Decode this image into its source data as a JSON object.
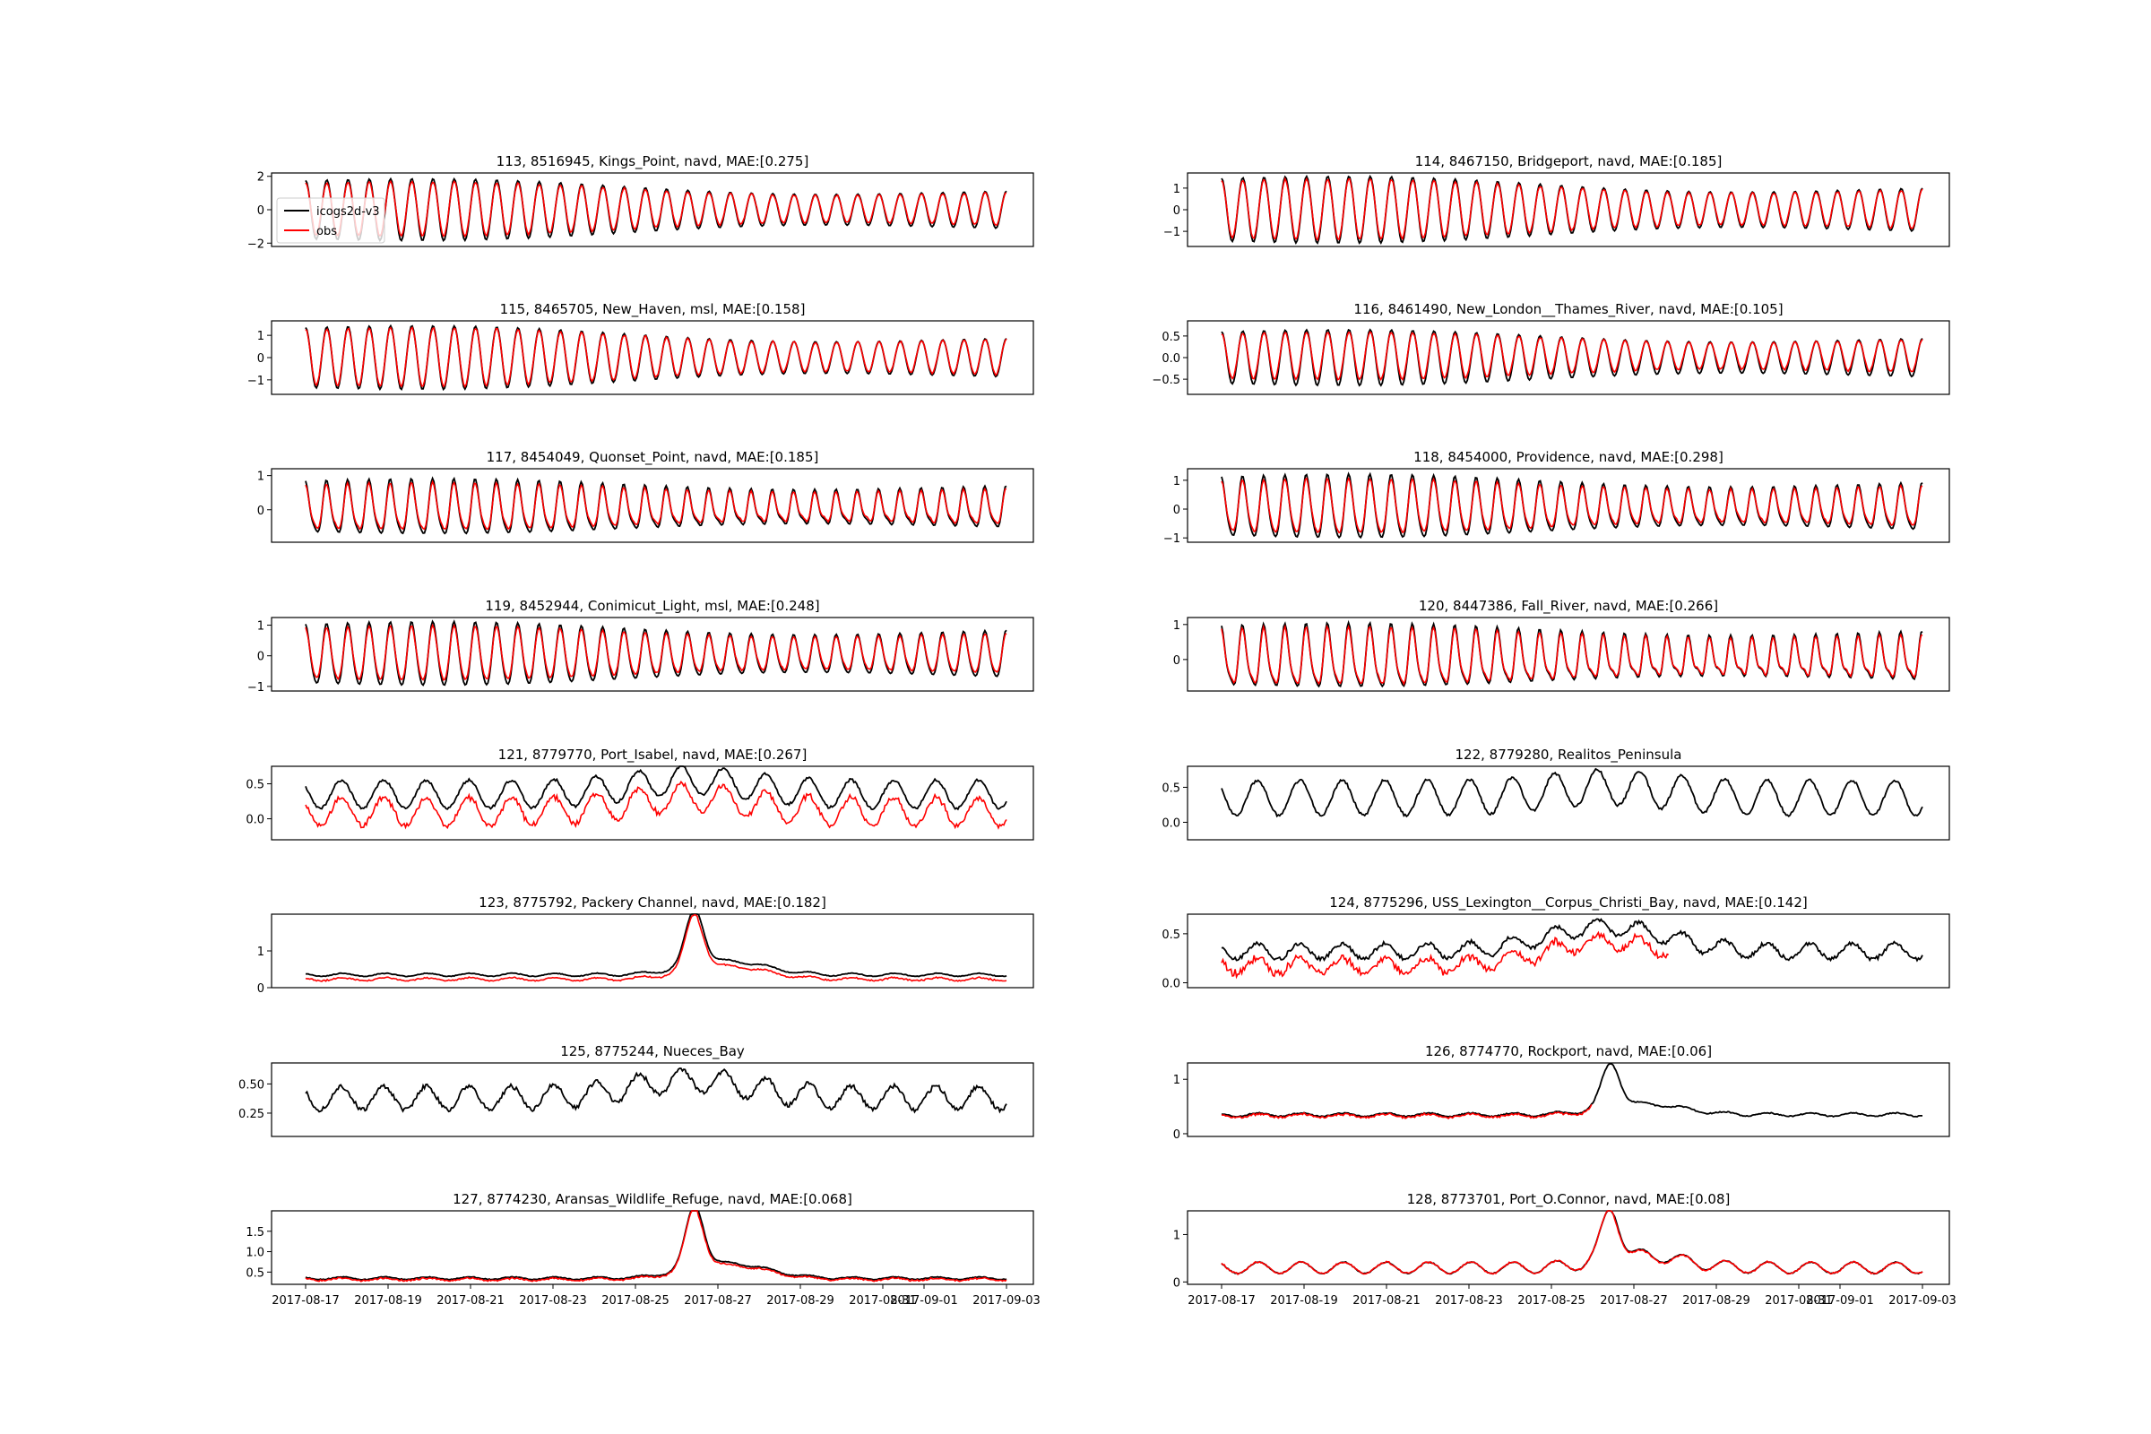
{
  "colors": {
    "model": "#000000",
    "obs": "#ff0000",
    "frame": "#000000"
  },
  "legend": {
    "placement": "upper-left",
    "entries": [
      "icogs2d-v3",
      "obs"
    ]
  },
  "x_ticks": [
    "2017-08-17",
    "2017-08-19",
    "2017-08-21",
    "2017-08-23",
    "2017-08-25",
    "2017-08-27",
    "2017-08-29",
    "2017-08-31",
    "2017-09-01",
    "2017-09-03"
  ],
  "chart_data": [
    {
      "type": "line",
      "title": "113, 8516945, Kings_Point, navd, MAE:[0.275]",
      "kind": "semidiurnal",
      "amp": 1.75,
      "mod": 0.45,
      "obs_scale": 0.88,
      "obs_offset": 0.05,
      "has_obs": true,
      "legend": true,
      "ylim": [
        -2.2,
        2.2
      ],
      "yticks": [
        2,
        0,
        -2
      ],
      "ytick_labels": [
        "2",
        "0",
        "−2"
      ]
    },
    {
      "type": "line",
      "title": "114, 8467150, Bridgeport, navd, MAE:[0.185]",
      "kind": "semidiurnal",
      "amp": 1.45,
      "mod": 0.4,
      "obs_scale": 0.9,
      "obs_offset": 0.03,
      "has_obs": true,
      "ylim": [
        -1.7,
        1.7
      ],
      "yticks": [
        1,
        0,
        -1
      ],
      "ytick_labels": [
        "1",
        "0",
        "−1"
      ]
    },
    {
      "type": "line",
      "title": "115, 8465705, New_Haven, msl, MAE:[0.158]",
      "kind": "semidiurnal",
      "amp": 1.35,
      "mod": 0.45,
      "obs_scale": 0.92,
      "obs_offset": 0.03,
      "has_obs": true,
      "ylim": [
        -1.65,
        1.65
      ],
      "yticks": [
        1,
        0,
        -1
      ],
      "ytick_labels": [
        "1",
        "0",
        "−1"
      ]
    },
    {
      "type": "line",
      "title": "116, 8461490, New_London__Thames_River, navd, MAE:[0.105]",
      "kind": "semidiurnal",
      "amp": 0.6,
      "mod": 0.35,
      "obs_scale": 0.85,
      "obs_offset": 0.04,
      "has_obs": true,
      "ylim": [
        -0.85,
        0.85
      ],
      "yticks": [
        0.5,
        0,
        -0.5
      ],
      "ytick_labels": [
        "0.5",
        "0.0",
        "−0.5"
      ]
    },
    {
      "type": "line",
      "title": "117, 8454049, Quonset_Point, navd, MAE:[0.185]",
      "kind": "semidiurnal",
      "amp": 0.72,
      "mod": 0.3,
      "obs_scale": 0.85,
      "obs_offset": 0.02,
      "offset": 0.15,
      "has_obs": true,
      "ylim": [
        -0.95,
        1.2
      ],
      "yticks": [
        1,
        0
      ],
      "ytick_labels": [
        "1",
        "0"
      ]
    },
    {
      "type": "line",
      "title": "118, 8454000, Providence, navd, MAE:[0.298]",
      "kind": "semidiurnal",
      "amp": 1.0,
      "mod": 0.3,
      "obs_scale": 0.85,
      "obs_offset": 0.03,
      "offset": 0.15,
      "has_obs": true,
      "ylim": [
        -1.15,
        1.4
      ],
      "yticks": [
        1,
        0,
        -1
      ],
      "ytick_labels": [
        "1",
        "0",
        "−1"
      ]
    },
    {
      "type": "line",
      "title": "119, 8452944, Conimicut_Light, msl, MAE:[0.248]",
      "kind": "semidiurnal",
      "amp": 0.95,
      "mod": 0.3,
      "obs_scale": 0.85,
      "obs_offset": 0.03,
      "offset": 0.1,
      "has_obs": true,
      "ylim": [
        -1.15,
        1.25
      ],
      "yticks": [
        1,
        0,
        -1
      ],
      "ytick_labels": [
        "1",
        "0",
        "−1"
      ]
    },
    {
      "type": "line",
      "title": "120, 8447386, Fall_River, navd, MAE:[0.266]",
      "kind": "semidiurnal",
      "amp": 0.8,
      "mod": 0.3,
      "obs_scale": 0.9,
      "obs_offset": 0.0,
      "offset": 0.2,
      "has_obs": true,
      "ylim": [
        -0.9,
        1.2
      ],
      "yticks": [
        1,
        0
      ],
      "ytick_labels": [
        "1",
        "0"
      ]
    },
    {
      "type": "line",
      "title": "121, 8779770, Port_Isabel, navd, MAE:[0.267]",
      "kind": "diurnal",
      "amp": 0.2,
      "base": 0.35,
      "surge": 0.2,
      "obs_shift": -0.25,
      "obs_scale": 1.0,
      "has_obs": true,
      "ylim": [
        -0.3,
        0.75
      ],
      "yticks": [
        0.5,
        0
      ],
      "ytick_labels": [
        "0.5",
        "0.0"
      ]
    },
    {
      "type": "line",
      "title": "122, 8779280, Realitos_Peninsula",
      "kind": "diurnal",
      "amp": 0.25,
      "base": 0.35,
      "surge": 0.15,
      "has_obs": false,
      "ylim": [
        -0.25,
        0.8
      ],
      "yticks": [
        0.5,
        0
      ],
      "ytick_labels": [
        "0.5",
        "0.0"
      ]
    },
    {
      "type": "line",
      "title": "123, 8775792, Packery Channel, navd, MAE:[0.182]",
      "kind": "surge",
      "amp": 0.04,
      "base": 0.35,
      "peak": 1.85,
      "obs_shift": -0.12,
      "has_obs": true,
      "ylim": [
        0,
        2.0
      ],
      "yticks": [
        1,
        0
      ],
      "ytick_labels": [
        "1",
        "0"
      ]
    },
    {
      "type": "line",
      "title": "124, 8775296, USS_Lexington__Corpus_Christi_Bay, navd, MAE:[0.142]",
      "kind": "diurnal",
      "amp": 0.08,
      "base": 0.32,
      "surge": 0.25,
      "obs_shift": -0.15,
      "obs_scale": 1.0,
      "has_obs": true,
      "obs_end": 0.64,
      "ylim": [
        -0.05,
        0.7
      ],
      "yticks": [
        0.5,
        0
      ],
      "ytick_labels": [
        "0.5",
        "0.0"
      ]
    },
    {
      "type": "line",
      "title": "125, 8775244, Nueces_Bay",
      "kind": "diurnal",
      "amp": 0.1,
      "base": 0.38,
      "surge": 0.15,
      "has_obs": false,
      "ylim": [
        0.05,
        0.68
      ],
      "yticks": [
        0.5,
        0.25
      ],
      "ytick_labels": [
        "0.50",
        "0.25"
      ]
    },
    {
      "type": "line",
      "title": "126, 8774770, Rockport, navd, MAE:[0.06]",
      "kind": "surge",
      "amp": 0.03,
      "base": 0.35,
      "peak": 1.15,
      "obs_shift": -0.02,
      "has_obs": true,
      "obs_end": 0.53,
      "ylim": [
        -0.05,
        1.3
      ],
      "yticks": [
        1,
        0
      ],
      "ytick_labels": [
        "1",
        "0"
      ]
    },
    {
      "type": "line",
      "title": "127, 8774230, Aransas_Wildlife_Refuge, navd, MAE:[0.068]",
      "kind": "surge",
      "amp": 0.03,
      "base": 0.35,
      "peak": 1.85,
      "obs_shift": -0.03,
      "has_obs": true,
      "ylim": [
        0.2,
        2.0
      ],
      "yticks": [
        1.5,
        1.0,
        0.5
      ],
      "ytick_labels": [
        "1.5",
        "1.0",
        "0.5"
      ]
    },
    {
      "type": "line",
      "title": "128, 8773701, Port_O.Connor, navd, MAE:[0.08]",
      "kind": "surge",
      "amp": 0.12,
      "base": 0.3,
      "peak": 1.35,
      "obs_shift": 0.0,
      "has_obs": true,
      "ylim": [
        -0.05,
        1.5
      ],
      "yticks": [
        1,
        0
      ],
      "ytick_labels": [
        "1",
        "0"
      ]
    }
  ]
}
